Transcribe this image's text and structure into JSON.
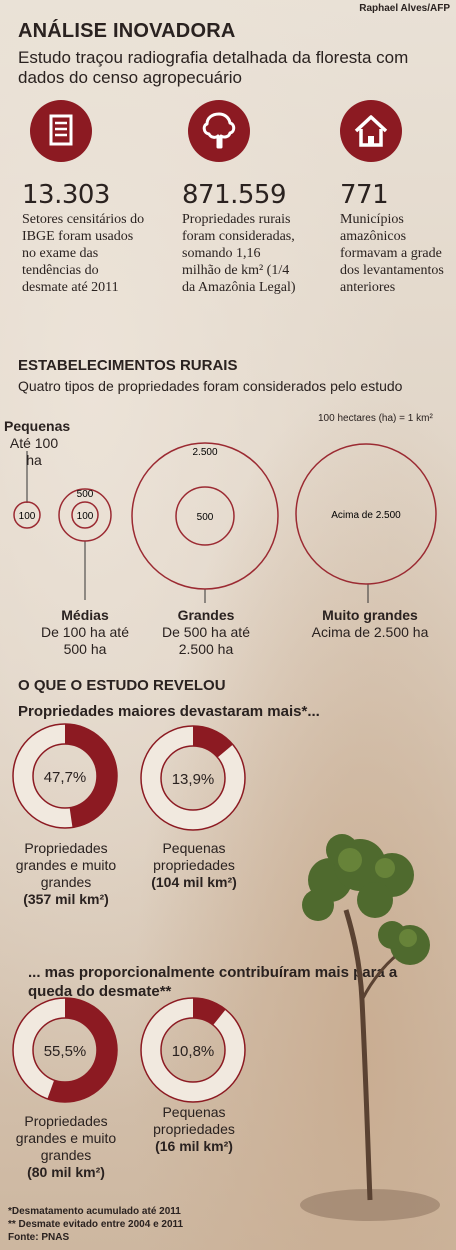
{
  "credit": "Raphael Alves/AFP",
  "header": {
    "title": "ANÁLISE INOVADORA",
    "subtitle": "Estudo traçou radiografia detalhada da floresta com dados do censo agropecuário"
  },
  "stats": [
    {
      "icon": "document-icon",
      "value": "13.303",
      "text": "Setores censitários do IBGE foram usados no exame das tendências do desmate até 2011"
    },
    {
      "icon": "tree-icon",
      "value": "871.559",
      "text": "Propriedades rurais foram consideradas, somando 1,16 milhão de km² (1/4 da Amazônia Legal)"
    },
    {
      "icon": "house-icon",
      "value": "771",
      "text": "Municípios amazônicos formavam a grade dos levantamentos anteriores"
    }
  ],
  "establishments": {
    "title": "ESTABELECIMENTOS RURAIS",
    "subtitle": "Quatro tipos de propriedades foram considerados pelo estudo",
    "scale_note": "100 hectares (ha) = 1 km²",
    "categories": [
      {
        "name": "Pequenas",
        "range": "Até 100 ha",
        "circles": [
          "100"
        ]
      },
      {
        "name": "Médias",
        "range": "De 100 ha até 500 ha",
        "circles": [
          "100",
          "500"
        ]
      },
      {
        "name": "Grandes",
        "range": "De 500 ha até 2.500 ha",
        "circles": [
          "500",
          "2.500"
        ]
      },
      {
        "name": "Muito grandes",
        "range": "Acima de 2.500 ha",
        "circles": [
          "Acima de 2.500"
        ]
      }
    ]
  },
  "findings": {
    "title": "O QUE O ESTUDO REVELOU",
    "section1": "Propriedades maiores devastaram mais*...",
    "section2": "... mas proporcionalmente contribuíram mais para a queda do desmate**"
  },
  "chart_data": [
    {
      "type": "pie",
      "title": "Propriedades maiores devastaram mais*...",
      "slices": [
        {
          "label": "Propriedades grandes e muito grandes",
          "value": 47.7,
          "value_label": "47,7%",
          "area": "(357 mil km²)"
        },
        {
          "label": "Pequenas propriedades",
          "value": 13.9,
          "value_label": "13,9%",
          "area": "(104 mil km²)"
        }
      ]
    },
    {
      "type": "pie",
      "title": "... mas proporcionalmente contribuíram mais para a queda do desmate**",
      "slices": [
        {
          "label": "Propriedades grandes e muito grandes",
          "value": 55.5,
          "value_label": "55,5%",
          "area": "(80 mil km²)"
        },
        {
          "label": "Pequenas propriedades",
          "value": 10.8,
          "value_label": "10,8%",
          "area": "(16 mil km²)"
        }
      ]
    }
  ],
  "footnotes": {
    "n1": "*Desmatamento acumulado até 2011",
    "n2": "** Desmate evitado entre 2004 e 2011",
    "source": "Fonte: PNAS"
  },
  "colors": {
    "accent": "#8c1a22",
    "ring": "#9b2a32"
  }
}
